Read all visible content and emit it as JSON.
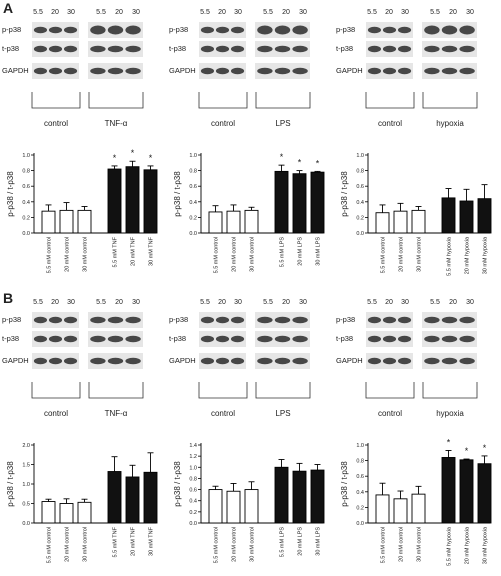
{
  "panel_labels": [
    "A",
    "B"
  ],
  "lane_headers": [
    "5.5",
    "20",
    "30",
    "5.5",
    "20",
    "30"
  ],
  "row_labels": [
    "p-p38",
    "t-p38",
    "GAPDH"
  ],
  "ylabel": "p-p38 / t-p38",
  "colors": {
    "control_bar": "#ffffff",
    "treated_bar": "#111111",
    "blot_bg": "#e6e6e6",
    "band": "#2a2a2a"
  },
  "panels": [
    {
      "id": "A",
      "groups": [
        {
          "control_label": "control",
          "treatment_label": "TNF-α"
        },
        {
          "control_label": "control",
          "treatment_label": "LPS"
        },
        {
          "control_label": "control",
          "treatment_label": "hypoxia"
        }
      ]
    },
    {
      "id": "B",
      "groups": [
        {
          "control_label": "control",
          "treatment_label": "TNF-α"
        },
        {
          "control_label": "control",
          "treatment_label": "LPS"
        },
        {
          "control_label": "control",
          "treatment_label": "hypoxia"
        }
      ]
    }
  ],
  "chart_data": [
    {
      "type": "bar",
      "panel": "A",
      "ylabel": "p-p38 / t-p38",
      "ylim": [
        0,
        1.0
      ],
      "yticks": [
        "0.0",
        "0.2",
        "0.4",
        "0.6",
        "0.8",
        "1.0"
      ],
      "categories": [
        "5.5 mM control",
        "20 mM control",
        "30 mM control",
        "5.5 mM TNF",
        "20 mM TNF",
        "30 mM TNF"
      ],
      "values": [
        0.28,
        0.29,
        0.29,
        0.82,
        0.85,
        0.81
      ],
      "errors": [
        0.08,
        0.1,
        0.05,
        0.04,
        0.07,
        0.05
      ],
      "significant": [
        "",
        "",
        "",
        "*",
        "*",
        "*"
      ]
    },
    {
      "type": "bar",
      "panel": "A",
      "ylabel": "p-p38 / t-p38",
      "ylim": [
        0,
        1.0
      ],
      "yticks": [
        "0.0",
        "0.2",
        "0.4",
        "0.6",
        "0.8",
        "1.0"
      ],
      "categories": [
        "5.5 mM control",
        "20 mM control",
        "30 mM control",
        "5.5 mM LPS",
        "20 mM LPS",
        "30 mM LPS"
      ],
      "values": [
        0.27,
        0.28,
        0.29,
        0.79,
        0.76,
        0.78
      ],
      "errors": [
        0.08,
        0.08,
        0.04,
        0.08,
        0.04,
        0.01
      ],
      "significant": [
        "",
        "",
        "",
        "*",
        "*",
        "*"
      ]
    },
    {
      "type": "bar",
      "panel": "A",
      "ylabel": "p-p38 / t-p38",
      "ylim": [
        0,
        1.0
      ],
      "yticks": [
        "0.0",
        "0.2",
        "0.4",
        "0.6",
        "0.8",
        "1.0"
      ],
      "categories": [
        "5.5 mM control",
        "20 mM control",
        "30 mM control",
        "5.5 mM hypoxia",
        "20 mM hypoxia",
        "30 mM hypoxia"
      ],
      "values": [
        0.26,
        0.28,
        0.29,
        0.45,
        0.41,
        0.44
      ],
      "errors": [
        0.1,
        0.1,
        0.05,
        0.12,
        0.15,
        0.18
      ],
      "significant": [
        "",
        "",
        "",
        "",
        "",
        ""
      ]
    },
    {
      "type": "bar",
      "panel": "B",
      "ylabel": "p-p38 / t-p38",
      "ylim": [
        0,
        2.0
      ],
      "yticks": [
        "0.0",
        "0.5",
        "1.0",
        "1.5",
        "2.0"
      ],
      "categories": [
        "5.5 mM control",
        "20 mM control",
        "30 mM control",
        "5.5 mM TNF",
        "20 mM TNF",
        "30 mM TNF"
      ],
      "values": [
        0.55,
        0.5,
        0.53,
        1.32,
        1.18,
        1.3
      ],
      "errors": [
        0.06,
        0.12,
        0.08,
        0.38,
        0.3,
        0.5
      ],
      "significant": [
        "",
        "",
        "",
        "",
        "",
        ""
      ]
    },
    {
      "type": "bar",
      "panel": "B",
      "ylabel": "p-p38 / t-p38",
      "ylim": [
        0,
        1.4
      ],
      "yticks": [
        "0.0",
        "0.2",
        "0.4",
        "0.6",
        "0.8",
        "1.0",
        "1.2",
        "1.4"
      ],
      "categories": [
        "5.5 mM control",
        "20 mM control",
        "30 mM control",
        "5.5 mM LPS",
        "20 mM LPS",
        "30 mM LPS"
      ],
      "values": [
        0.6,
        0.57,
        0.6,
        1.0,
        0.93,
        0.95
      ],
      "errors": [
        0.06,
        0.14,
        0.14,
        0.14,
        0.14,
        0.1
      ],
      "significant": [
        "",
        "",
        "",
        "",
        "",
        ""
      ]
    },
    {
      "type": "bar",
      "panel": "B",
      "ylabel": "p-p38 / t-p38",
      "ylim": [
        0,
        1.0
      ],
      "yticks": [
        "0.0",
        "0.2",
        "0.4",
        "0.6",
        "0.8",
        "1.0"
      ],
      "categories": [
        "5.5 mM control",
        "20 mM control",
        "30 mM control",
        "5.5 mM hypoxia",
        "20 mM hypoxia",
        "30 mM hypoxia"
      ],
      "values": [
        0.36,
        0.31,
        0.37,
        0.84,
        0.81,
        0.76
      ],
      "errors": [
        0.15,
        0.1,
        0.1,
        0.09,
        0.01,
        0.1
      ],
      "significant": [
        "",
        "",
        "",
        "*",
        "*",
        "*"
      ]
    }
  ]
}
